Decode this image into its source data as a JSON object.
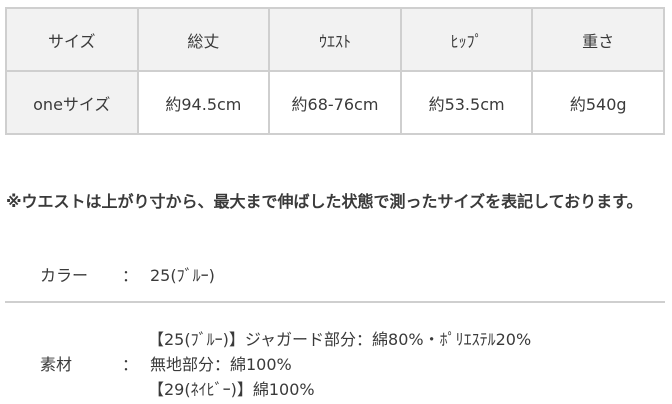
{
  "size_table": {
    "headers": [
      "サイズ",
      "総丈",
      "ｳｴｽﾄ",
      "ﾋｯﾌﾟ",
      "重さ"
    ],
    "rows": [
      [
        "oneサイズ",
        "約94.5cm",
        "約68-76cm",
        "約53.5cm",
        "約540g"
      ]
    ]
  },
  "note": "※ウエストは上がり寸から、最大まで伸ばした状態で測ったサイズを表記しております。",
  "color": {
    "label": "カラー",
    "colon": "：",
    "value": "25(ﾌﾞﾙｰ)"
  },
  "material": {
    "label": "素材",
    "colon": "：",
    "lines": [
      "【25(ﾌﾞﾙｰ)】ジャガード部分：綿80%・ﾎﾟﾘｴｽﾃﾙ20%",
      "無地部分：綿100%",
      "【29(ﾈｲﾋﾞｰ)】綿100%"
    ]
  }
}
